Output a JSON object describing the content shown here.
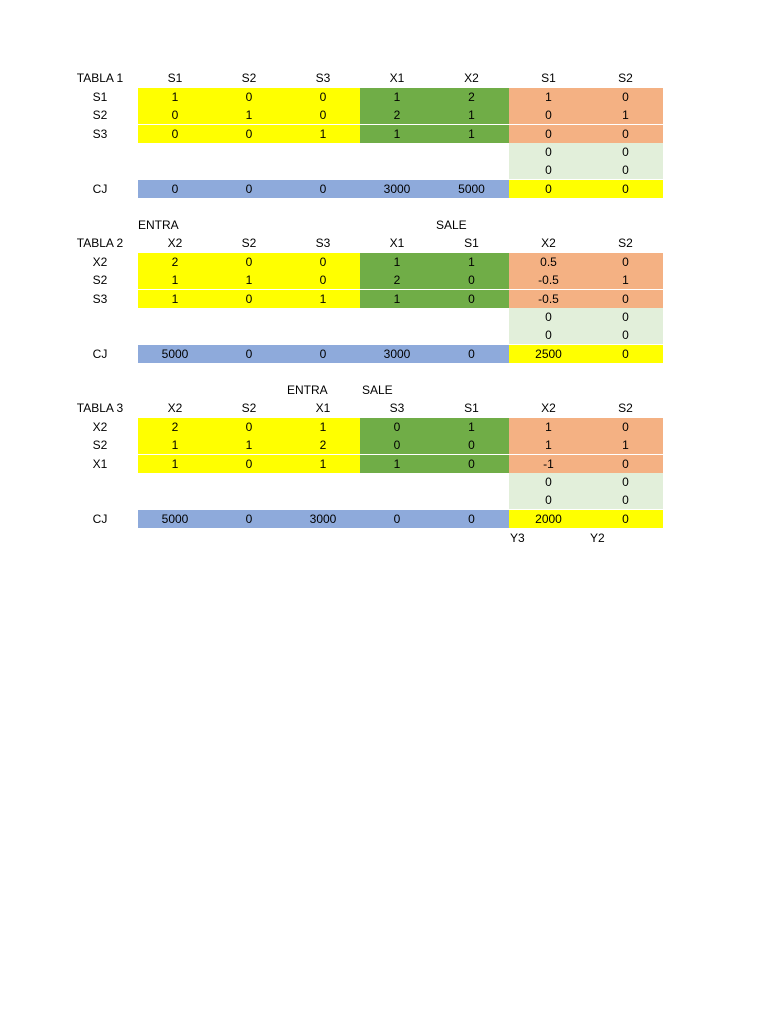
{
  "tables": [
    {
      "label": "TABLA 1",
      "notes": [],
      "header": [
        "S1",
        "S2",
        "S3",
        "X1",
        "X2",
        "S1",
        "S2"
      ],
      "rows": [
        {
          "label": "S1",
          "values": [
            1,
            0,
            0,
            1,
            2,
            1,
            0
          ]
        },
        {
          "label": "S2",
          "values": [
            0,
            1,
            0,
            2,
            1,
            0,
            1
          ]
        },
        {
          "label": "S3",
          "values": [
            0,
            0,
            1,
            1,
            1,
            0,
            0
          ]
        }
      ],
      "extra_rows": [
        [
          0,
          0
        ],
        [
          0,
          0
        ]
      ],
      "cj": {
        "label": "CJ",
        "values": [
          0,
          0,
          0,
          3000,
          5000,
          0,
          0
        ]
      }
    },
    {
      "label": "TABLA 2",
      "notes": [
        "ENTRA",
        "SALE"
      ],
      "header": [
        "X2",
        "S2",
        "S3",
        "X1",
        "S1",
        "X2",
        "S2"
      ],
      "rows": [
        {
          "label": "X2",
          "values": [
            2,
            0,
            0,
            1,
            1,
            0.5,
            0
          ]
        },
        {
          "label": "S2",
          "values": [
            1,
            1,
            0,
            2,
            0,
            -0.5,
            1
          ]
        },
        {
          "label": "S3",
          "values": [
            1,
            0,
            1,
            1,
            0,
            -0.5,
            0
          ]
        }
      ],
      "extra_rows": [
        [
          0,
          0
        ],
        [
          0,
          0
        ]
      ],
      "cj": {
        "label": "CJ",
        "values": [
          5000,
          0,
          0,
          3000,
          0,
          2500,
          0
        ]
      }
    },
    {
      "label": "TABLA 3",
      "notes": [
        "ENTRA",
        "SALE"
      ],
      "header": [
        "X2",
        "S2",
        "X1",
        "S3",
        "S1",
        "X2",
        "S2"
      ],
      "rows": [
        {
          "label": "X2",
          "values": [
            2,
            0,
            1,
            0,
            1,
            1,
            0
          ]
        },
        {
          "label": "S2",
          "values": [
            1,
            1,
            2,
            0,
            0,
            1,
            1
          ]
        },
        {
          "label": "X1",
          "values": [
            1,
            0,
            1,
            1,
            0,
            -1,
            0
          ]
        }
      ],
      "extra_rows": [
        [
          0,
          0
        ],
        [
          0,
          0
        ]
      ],
      "cj": {
        "label": "CJ",
        "values": [
          5000,
          0,
          3000,
          0,
          0,
          2000,
          0
        ]
      }
    }
  ],
  "footer": [
    "Y3",
    "Y2"
  ]
}
